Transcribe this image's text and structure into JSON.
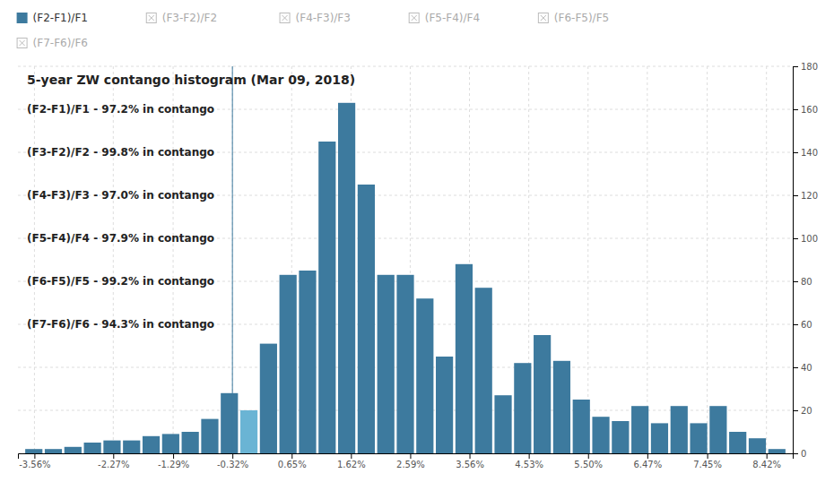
{
  "chart_data": {
    "type": "histogram",
    "title": "5-year ZW contango histogram (Mar 09, 2018)",
    "annotations": [
      "(F2-F1)/F1 - 97.2% in contango",
      "(F3-F2)/F2 - 99.8% in contango",
      "(F4-F3)/F3 - 97.0% in contango",
      "(F5-F4)/F4 - 97.9% in contango",
      "(F6-F5)/F5 - 99.2% in contango",
      "(F7-F6)/F6 - 94.3% in contango"
    ],
    "legend_labels": [
      "(F2-F1)/F1",
      "(F3-F2)/F2",
      "(F4-F3)/F3",
      "(F5-F4)/F4",
      "(F6-F5)/F5",
      "(F7-F6)/F6"
    ],
    "legend_active": [
      true,
      false,
      false,
      false,
      false,
      false
    ],
    "bins": [
      -3.73,
      -3.41,
      -3.09,
      -2.77,
      -2.45,
      -2.13,
      -1.81,
      -1.49,
      -1.17,
      -0.85,
      -0.53,
      -0.21,
      0.11,
      0.43,
      0.75,
      1.07,
      1.39,
      1.71,
      2.03,
      2.35,
      2.67,
      2.99,
      3.31,
      3.63,
      3.95,
      4.27,
      4.59,
      4.91,
      5.23,
      5.55,
      5.87,
      6.19,
      6.51,
      6.83,
      7.15,
      7.47,
      7.79,
      8.11,
      8.43,
      8.75
    ],
    "values": [
      2,
      2,
      3,
      5,
      6,
      6,
      8,
      9,
      10,
      16,
      28,
      20,
      51,
      83,
      85,
      145,
      163,
      125,
      83,
      83,
      72,
      45,
      88,
      77,
      27,
      42,
      55,
      43,
      25,
      17,
      15,
      22,
      14,
      22,
      14,
      22,
      10,
      7,
      2
    ],
    "color": "#3d7a9e",
    "colors": [
      "#3d7a9e",
      "#3d7a9e",
      "#3d7a9e",
      "#3d7a9e",
      "#3d7a9e",
      "#3d7a9e",
      "#3d7a9e",
      "#3d7a9e",
      "#3d7a9e",
      "#3d7a9e",
      "#3d7a9e",
      "#6ab4d4",
      "#3d7a9e",
      "#3d7a9e",
      "#3d7a9e",
      "#3d7a9e",
      "#3d7a9e",
      "#3d7a9e",
      "#3d7a9e",
      "#3d7a9e",
      "#3d7a9e",
      "#3d7a9e",
      "#3d7a9e",
      "#3d7a9e",
      "#3d7a9e",
      "#3d7a9e",
      "#3d7a9e",
      "#3d7a9e",
      "#3d7a9e",
      "#3d7a9e",
      "#3d7a9e",
      "#3d7a9e",
      "#3d7a9e",
      "#3d7a9e",
      "#3d7a9e",
      "#3d7a9e",
      "#3d7a9e",
      "#3d7a9e",
      "#3d7a9e"
    ],
    "vline_x": -0.32,
    "xlim": [
      -3.83,
      8.85
    ],
    "xticks": [
      {
        "value": -3.56,
        "label": "-3.56%"
      },
      {
        "value": -2.27,
        "label": "-2.27%"
      },
      {
        "value": -1.29,
        "label": "-1.29%"
      },
      {
        "value": -0.32,
        "label": "-0.32%"
      },
      {
        "value": 0.65,
        "label": "0.65%"
      },
      {
        "value": 1.62,
        "label": "1.62%"
      },
      {
        "value": 2.59,
        "label": "2.59%"
      },
      {
        "value": 3.56,
        "label": "3.56%"
      },
      {
        "value": 4.53,
        "label": "4.53%"
      },
      {
        "value": 5.5,
        "label": "5.50%"
      },
      {
        "value": 6.47,
        "label": "6.47%"
      },
      {
        "value": 7.45,
        "label": "7.45%"
      },
      {
        "value": 8.42,
        "label": "8.42%"
      }
    ],
    "ylim": [
      0,
      180
    ],
    "yticks": [
      0,
      20,
      40,
      60,
      80,
      100,
      120,
      140,
      160,
      180
    ],
    "grid": true
  }
}
